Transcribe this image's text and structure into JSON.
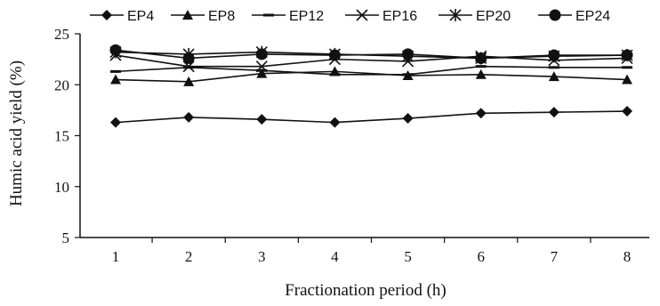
{
  "chart_data": {
    "type": "line",
    "xlabel": "Fractionation period (h)",
    "ylabel": "Humic acid yield (%)",
    "x": [
      1,
      2,
      3,
      4,
      5,
      6,
      7,
      8
    ],
    "ylim": [
      5,
      25
    ],
    "yticks": [
      5,
      10,
      15,
      20,
      25
    ],
    "grid": false,
    "legend_position": "top",
    "series": [
      {
        "name": "EP4",
        "marker": "diamond",
        "values": [
          16.3,
          16.8,
          16.6,
          16.3,
          16.7,
          17.2,
          17.3,
          17.4
        ]
      },
      {
        "name": "EP8",
        "marker": "triangle",
        "values": [
          20.5,
          20.3,
          21.1,
          21.3,
          20.9,
          21.0,
          20.8,
          20.5
        ]
      },
      {
        "name": "EP12",
        "marker": "dash",
        "values": [
          21.3,
          21.7,
          21.4,
          21.0,
          21.0,
          21.8,
          21.7,
          21.7
        ]
      },
      {
        "name": "EP16",
        "marker": "x",
        "values": [
          22.9,
          21.8,
          21.8,
          22.5,
          22.3,
          22.8,
          22.4,
          22.6
        ]
      },
      {
        "name": "EP20",
        "marker": "asterisk",
        "values": [
          23.2,
          23.0,
          23.2,
          23.0,
          22.8,
          22.6,
          22.8,
          22.9
        ]
      },
      {
        "name": "EP24",
        "marker": "circle",
        "values": [
          23.4,
          22.6,
          23.0,
          22.9,
          23.0,
          22.6,
          22.9,
          22.9
        ]
      }
    ]
  }
}
